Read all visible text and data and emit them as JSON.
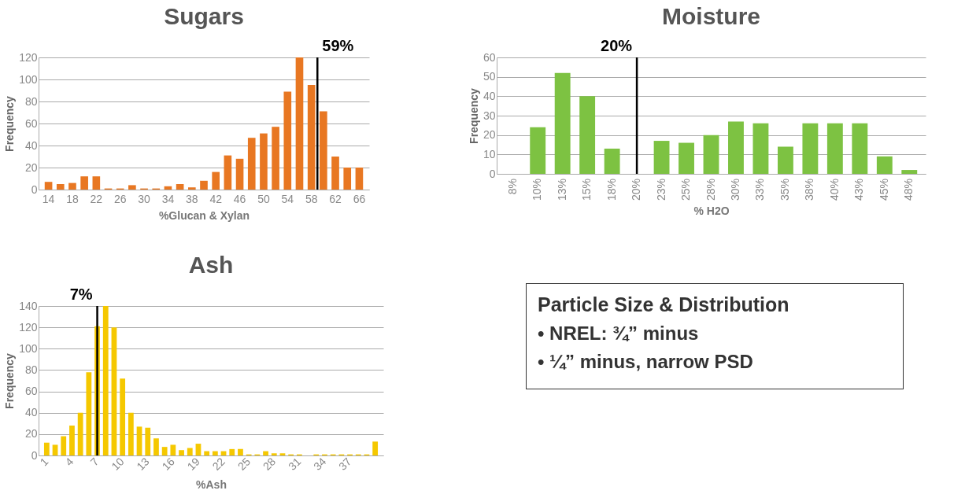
{
  "chart_data": [
    {
      "type": "bar",
      "title": "Sugars",
      "xlabel": "%Glucan & Xylan",
      "ylabel": "Frequency",
      "color": "#e87722",
      "x": [
        14,
        16,
        18,
        20,
        22,
        24,
        26,
        28,
        30,
        32,
        34,
        36,
        38,
        40,
        42,
        44,
        46,
        48,
        50,
        52,
        54,
        56,
        58,
        60,
        62,
        64,
        66
      ],
      "values": [
        7,
        5,
        6,
        12,
        12,
        1,
        1,
        4,
        1,
        1,
        3,
        5,
        2,
        8,
        16,
        31,
        28,
        47,
        51,
        57,
        89,
        120,
        95,
        71,
        30,
        20,
        20
      ],
      "xlim": [
        13,
        67
      ],
      "xticks": [
        14,
        18,
        22,
        26,
        30,
        34,
        38,
        42,
        46,
        50,
        54,
        58,
        62,
        66
      ],
      "ylim": [
        0,
        120
      ],
      "yticks": [
        0,
        20,
        40,
        60,
        80,
        100,
        120
      ],
      "grid": "y",
      "ref_lines": [
        {
          "axis": "x",
          "value": 59,
          "label": "59%"
        }
      ]
    },
    {
      "type": "bar",
      "title": "Moisture",
      "xlabel": "% H2O",
      "ylabel": "Frequency",
      "color": "#7dc242",
      "x": [
        7.5,
        10,
        12.5,
        15,
        17.5,
        20,
        22.5,
        25,
        27.5,
        30,
        32.5,
        35,
        37.5,
        40,
        42.5,
        45,
        47.5
      ],
      "values": [
        0,
        24,
        52,
        40,
        13,
        0,
        17,
        16,
        20,
        27,
        26,
        14,
        26,
        26,
        26,
        9,
        2
      ],
      "xlim": [
        6.25,
        48.75
      ],
      "xticks": [
        {
          "value": 7.5,
          "label": "8%"
        },
        {
          "value": 10,
          "label": "10%"
        },
        {
          "value": 12.5,
          "label": "13%"
        },
        {
          "value": 15,
          "label": "15%"
        },
        {
          "value": 17.5,
          "label": "18%"
        },
        {
          "value": 20,
          "label": "20%"
        },
        {
          "value": 22.5,
          "label": "23%"
        },
        {
          "value": 25,
          "label": "25%"
        },
        {
          "value": 27.5,
          "label": "28%"
        },
        {
          "value": 30,
          "label": "30%"
        },
        {
          "value": 32.5,
          "label": "33%"
        },
        {
          "value": 35,
          "label": "35%"
        },
        {
          "value": 37.5,
          "label": "38%"
        },
        {
          "value": 40,
          "label": "40%"
        },
        {
          "value": 42.5,
          "label": "43%"
        },
        {
          "value": 45,
          "label": "45%"
        },
        {
          "value": 47.5,
          "label": "48%"
        }
      ],
      "ylim": [
        0,
        60
      ],
      "yticks": [
        0,
        10,
        20,
        30,
        40,
        50,
        60
      ],
      "grid": "y",
      "ref_lines": [
        {
          "axis": "x",
          "value": 20,
          "label": "20%"
        }
      ]
    },
    {
      "type": "bar",
      "title": "Ash",
      "xlabel": "%Ash",
      "ylabel": "Frequency",
      "color": "#f5c800",
      "x": [
        1,
        2,
        3,
        4,
        5,
        6,
        7,
        8,
        9,
        10,
        11,
        12,
        13,
        14,
        15,
        16,
        17,
        18,
        19,
        20,
        21,
        22,
        23,
        24,
        25,
        26,
        27,
        28,
        29,
        30,
        31,
        32,
        33,
        34,
        35,
        36,
        37,
        38,
        39,
        40
      ],
      "values": [
        12,
        10,
        18,
        28,
        40,
        78,
        121,
        140,
        120,
        72,
        40,
        27,
        26,
        16,
        8,
        10,
        5,
        7,
        11,
        4,
        4,
        4,
        6,
        6,
        1,
        1,
        4,
        2,
        2,
        1,
        1,
        0,
        1,
        1,
        1,
        1,
        1,
        1,
        1,
        13
      ],
      "xlim": [
        0.5,
        40.5
      ],
      "xticks": [
        1,
        4,
        7,
        10,
        13,
        16,
        19,
        22,
        25,
        28,
        31,
        34,
        37
      ],
      "ylim": [
        0,
        140
      ],
      "yticks": [
        0,
        20,
        40,
        60,
        80,
        100,
        120,
        140
      ],
      "grid": "y",
      "ref_lines": [
        {
          "axis": "x",
          "value": 7,
          "label": "7%"
        }
      ]
    },
    {
      "type": "other",
      "title": "Particle Size & Distribution",
      "annotations": [
        "• NREL: ¾” minus",
        "• ¼” minus, narrow PSD"
      ]
    }
  ]
}
